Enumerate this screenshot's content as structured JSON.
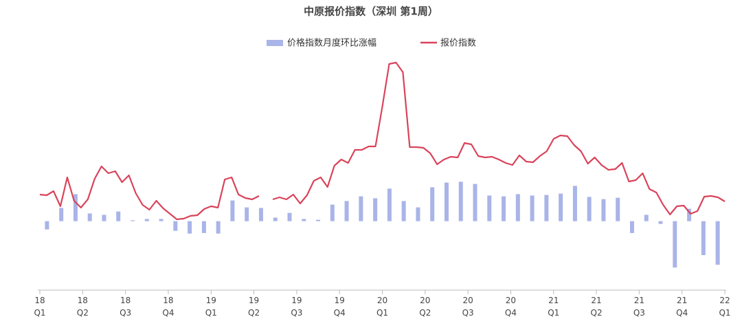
{
  "chart_data": {
    "type": "bar-line",
    "title": "中原报价指数（深圳 第1周）",
    "xlim": [
      0,
      48
    ],
    "xticks": [
      {
        "value": 0,
        "label": "18\nQ1"
      },
      {
        "value": 3,
        "label": "18\nQ2"
      },
      {
        "value": 6,
        "label": "18\nQ3"
      },
      {
        "value": 9,
        "label": "18\nQ4"
      },
      {
        "value": 12,
        "label": "19\nQ1"
      },
      {
        "value": 15,
        "label": "19\nQ2"
      },
      {
        "value": 18,
        "label": "19\nQ3"
      },
      {
        "value": 21,
        "label": "19\nQ4"
      },
      {
        "value": 24,
        "label": "20\nQ1"
      },
      {
        "value": 27,
        "label": "20\nQ2"
      },
      {
        "value": 30,
        "label": "20\nQ3"
      },
      {
        "value": 33,
        "label": "20\nQ4"
      },
      {
        "value": 36,
        "label": "21\nQ1"
      },
      {
        "value": 39,
        "label": "21\nQ2"
      },
      {
        "value": 42,
        "label": "21\nQ3"
      },
      {
        "value": 45,
        "label": "21\nQ4"
      },
      {
        "value": 48,
        "label": "22\nQ1"
      }
    ],
    "ylim": [
      0,
      337
    ],
    "y2lim": [
      -2.5,
      5.9
    ],
    "series": [
      {
        "name": "价格指数月度环比涨幅",
        "type": "bar",
        "axis": "y2",
        "color": "#a9b4e8",
        "values": [
          -0.3,
          0.48,
          0.98,
          0.28,
          0.23,
          0.35,
          0.03,
          0.08,
          0.08,
          -0.35,
          -0.45,
          -0.43,
          -0.45,
          0.75,
          0.5,
          0.48,
          0.13,
          0.3,
          0.08,
          0.05,
          0.6,
          0.73,
          0.9,
          0.83,
          1.18,
          0.73,
          0.5,
          1.23,
          1.4,
          1.43,
          1.35,
          0.93,
          0.9,
          0.98,
          0.93,
          0.95,
          1.0,
          1.28,
          0.88,
          0.8,
          0.85,
          -0.43,
          0.23,
          -0.1,
          -1.68,
          0.45,
          -1.23,
          -1.58
        ]
      },
      {
        "name": "报价指数",
        "type": "line",
        "color": "#d9435a",
        "values": [
          139,
          138,
          144,
          122,
          164,
          130,
          120,
          132,
          162,
          180,
          170,
          173,
          157,
          167,
          141,
          124,
          117,
          130,
          119,
          111,
          103,
          104,
          108,
          109,
          118,
          122,
          120,
          161,
          164,
          139,
          134,
          132,
          137,
          null,
          132,
          135,
          132,
          139,
          126,
          138,
          159,
          164,
          150,
          181,
          190,
          185,
          204,
          204,
          209,
          209,
          267,
          329,
          331,
          317,
          208,
          208,
          207,
          199,
          183,
          190,
          194,
          193,
          214,
          212,
          195,
          193,
          194,
          190,
          185,
          182,
          196,
          187,
          186,
          195,
          202,
          220,
          225,
          224,
          211,
          202,
          184,
          193,
          182,
          175,
          176,
          185,
          158,
          160,
          170,
          147,
          142,
          124,
          110,
          122,
          123,
          111,
          115,
          136,
          137,
          135,
          129
        ]
      }
    ]
  }
}
